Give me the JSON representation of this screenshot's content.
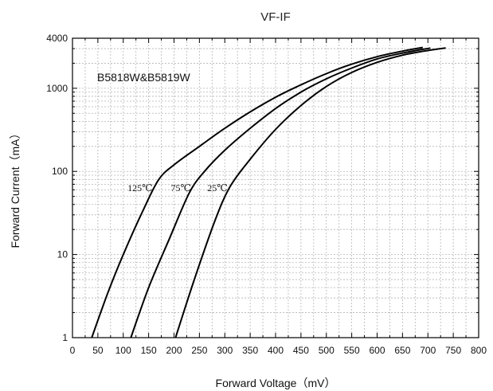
{
  "chart_data": {
    "type": "line",
    "title": "VF-IF",
    "xlabel": "Forward Voltage（mV）",
    "ylabel": "Forward Current（mA）",
    "annotation": "B5818W&B5819W",
    "x_scale": "linear",
    "y_scale": "log",
    "xlim": [
      0,
      800
    ],
    "ylim": [
      1,
      4000
    ],
    "x_ticks": [
      "0",
      "50",
      "100",
      "150",
      "200",
      "250",
      "300",
      "350",
      "400",
      "450",
      "500",
      "550",
      "600",
      "650",
      "700",
      "750",
      "800"
    ],
    "y_ticks": [
      "1",
      "10",
      "100",
      "1000",
      "4000"
    ],
    "grid": true,
    "series": [
      {
        "name": "125℃",
        "x": [
          38,
          70,
          100,
          140,
          170,
          200,
          250,
          300,
          350,
          400,
          450,
          500,
          550,
          600,
          650,
          690
        ],
        "y": [
          1,
          3.5,
          10,
          35,
          80,
          120,
          200,
          330,
          520,
          780,
          1100,
          1500,
          1950,
          2400,
          2800,
          3100
        ]
      },
      {
        "name": "75℃",
        "x": [
          115,
          150,
          190,
          230,
          260,
          300,
          350,
          400,
          450,
          500,
          550,
          600,
          650,
          705
        ],
        "y": [
          1,
          4,
          15,
          55,
          100,
          180,
          330,
          570,
          900,
          1300,
          1750,
          2250,
          2650,
          3050
        ]
      },
      {
        "name": "25℃",
        "x": [
          203,
          240,
          280,
          310,
          350,
          400,
          450,
          500,
          550,
          600,
          650,
          700,
          735
        ],
        "y": [
          1,
          5,
          25,
          65,
          140,
          320,
          620,
          1050,
          1550,
          2050,
          2500,
          2850,
          3050
        ]
      }
    ]
  }
}
